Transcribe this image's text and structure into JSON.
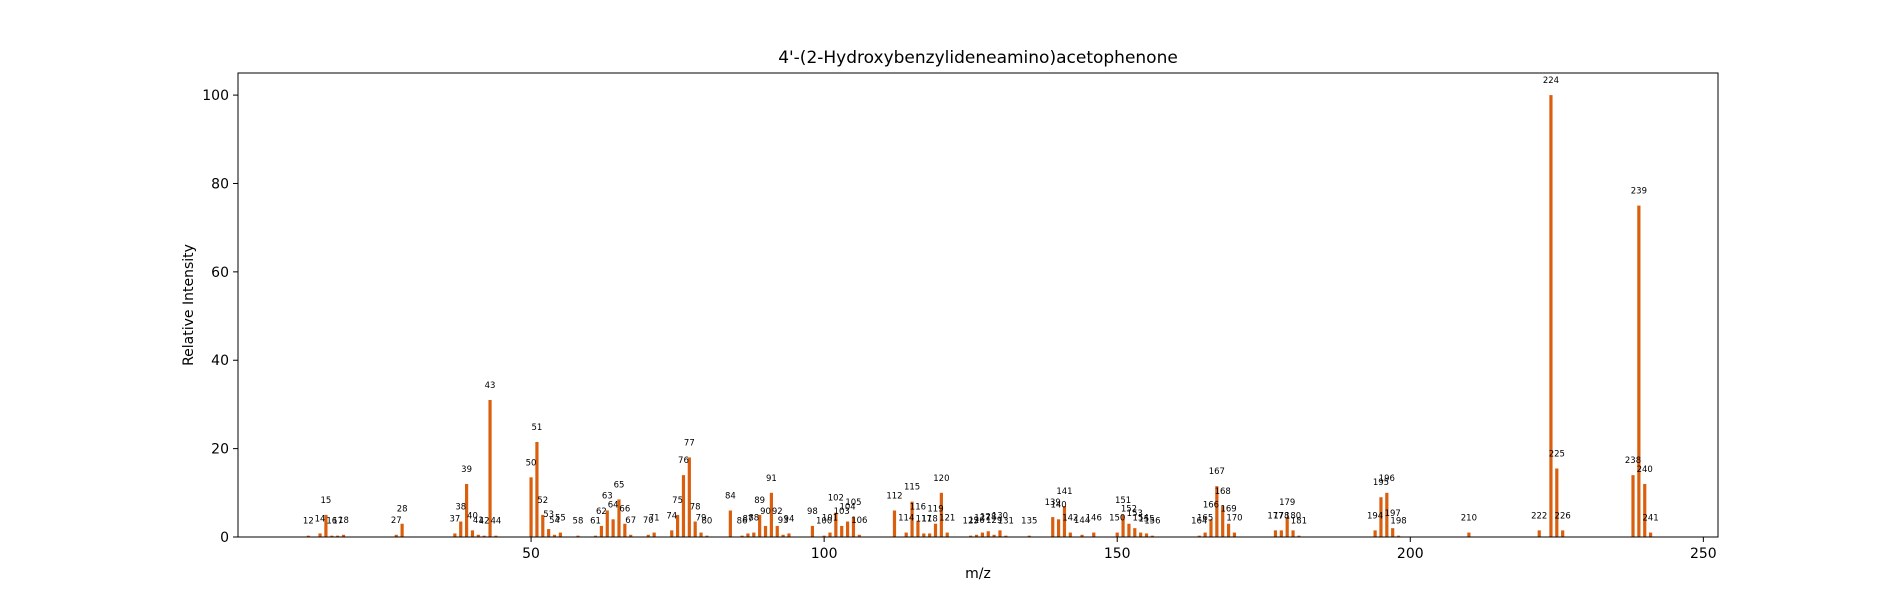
{
  "chart_data": {
    "type": "bar",
    "title": "4'-(2-Hydroxybenzylideneamino)acetophenone",
    "xlabel": "m/z",
    "ylabel": "Relative Intensity",
    "xlim": [
      0,
      252.5
    ],
    "ylim": [
      0,
      105
    ],
    "xticks": [
      50,
      100,
      150,
      200,
      250
    ],
    "yticks": [
      0,
      20,
      40,
      60,
      80,
      100
    ],
    "bar_color": "#d95f0e",
    "grid": false,
    "peaks": [
      {
        "mz": 12,
        "intensity": 0.3,
        "label": "12"
      },
      {
        "mz": 14,
        "intensity": 0.8,
        "label": "14"
      },
      {
        "mz": 15,
        "intensity": 5.0,
        "label": "15"
      },
      {
        "mz": 16,
        "intensity": 0.3,
        "label": "16"
      },
      {
        "mz": 17,
        "intensity": 0.3,
        "label": "17"
      },
      {
        "mz": 18,
        "intensity": 0.5,
        "label": "18"
      },
      {
        "mz": 27,
        "intensity": 0.5,
        "label": "27"
      },
      {
        "mz": 28,
        "intensity": 3.0,
        "label": "28"
      },
      {
        "mz": 37,
        "intensity": 0.8,
        "label": "37"
      },
      {
        "mz": 38,
        "intensity": 3.5,
        "label": "38"
      },
      {
        "mz": 39,
        "intensity": 12.0,
        "label": "39"
      },
      {
        "mz": 40,
        "intensity": 1.5,
        "label": "40"
      },
      {
        "mz": 41,
        "intensity": 0.5,
        "label": "41"
      },
      {
        "mz": 42,
        "intensity": 0.3,
        "label": "42"
      },
      {
        "mz": 43,
        "intensity": 31.0,
        "label": "43"
      },
      {
        "mz": 44,
        "intensity": 0.3,
        "label": "44"
      },
      {
        "mz": 50,
        "intensity": 13.5,
        "label": "50"
      },
      {
        "mz": 51,
        "intensity": 21.5,
        "label": "51"
      },
      {
        "mz": 52,
        "intensity": 5.0,
        "label": "52"
      },
      {
        "mz": 53,
        "intensity": 1.8,
        "label": "53"
      },
      {
        "mz": 54,
        "intensity": 0.5,
        "label": "54"
      },
      {
        "mz": 55,
        "intensity": 1.0,
        "label": "55"
      },
      {
        "mz": 58,
        "intensity": 0.3,
        "label": "58"
      },
      {
        "mz": 61,
        "intensity": 0.3,
        "label": "61"
      },
      {
        "mz": 62,
        "intensity": 2.5,
        "label": "62"
      },
      {
        "mz": 63,
        "intensity": 6.0,
        "label": "63"
      },
      {
        "mz": 64,
        "intensity": 4.0,
        "label": "64"
      },
      {
        "mz": 65,
        "intensity": 8.5,
        "label": "65"
      },
      {
        "mz": 66,
        "intensity": 3.0,
        "label": "66"
      },
      {
        "mz": 67,
        "intensity": 0.5,
        "label": "67"
      },
      {
        "mz": 70,
        "intensity": 0.5,
        "label": "70"
      },
      {
        "mz": 71,
        "intensity": 1.0,
        "label": "71"
      },
      {
        "mz": 74,
        "intensity": 1.5,
        "label": "74"
      },
      {
        "mz": 75,
        "intensity": 5.0,
        "label": "75"
      },
      {
        "mz": 76,
        "intensity": 14.0,
        "label": "76"
      },
      {
        "mz": 77,
        "intensity": 18.0,
        "label": "77"
      },
      {
        "mz": 78,
        "intensity": 3.5,
        "label": "78"
      },
      {
        "mz": 79,
        "intensity": 1.0,
        "label": "79"
      },
      {
        "mz": 80,
        "intensity": 0.3,
        "label": "80"
      },
      {
        "mz": 84,
        "intensity": 6.0,
        "label": "84"
      },
      {
        "mz": 86,
        "intensity": 0.3,
        "label": "86"
      },
      {
        "mz": 87,
        "intensity": 0.8,
        "label": "87"
      },
      {
        "mz": 88,
        "intensity": 1.0,
        "label": "88"
      },
      {
        "mz": 89,
        "intensity": 5.0,
        "label": "89"
      },
      {
        "mz": 90,
        "intensity": 2.5,
        "label": "90"
      },
      {
        "mz": 91,
        "intensity": 10.0,
        "label": "91"
      },
      {
        "mz": 92,
        "intensity": 2.5,
        "label": "92"
      },
      {
        "mz": 93,
        "intensity": 0.5,
        "label": "93"
      },
      {
        "mz": 94,
        "intensity": 0.8,
        "label": "94"
      },
      {
        "mz": 98,
        "intensity": 2.5,
        "label": "98"
      },
      {
        "mz": 100,
        "intensity": 0.3,
        "label": "100"
      },
      {
        "mz": 101,
        "intensity": 1.0,
        "label": "101"
      },
      {
        "mz": 102,
        "intensity": 5.5,
        "label": "102"
      },
      {
        "mz": 103,
        "intensity": 2.5,
        "label": "103"
      },
      {
        "mz": 104,
        "intensity": 3.5,
        "label": "104"
      },
      {
        "mz": 105,
        "intensity": 4.5,
        "label": "105"
      },
      {
        "mz": 106,
        "intensity": 0.5,
        "label": "106"
      },
      {
        "mz": 112,
        "intensity": 6.0,
        "label": "112"
      },
      {
        "mz": 114,
        "intensity": 1.0,
        "label": "114"
      },
      {
        "mz": 115,
        "intensity": 8.0,
        "label": "115"
      },
      {
        "mz": 116,
        "intensity": 3.5,
        "label": "116"
      },
      {
        "mz": 117,
        "intensity": 0.8,
        "label": "117"
      },
      {
        "mz": 118,
        "intensity": 0.8,
        "label": "118"
      },
      {
        "mz": 119,
        "intensity": 3.0,
        "label": "119"
      },
      {
        "mz": 120,
        "intensity": 10.0,
        "label": "120"
      },
      {
        "mz": 121,
        "intensity": 1.0,
        "label": "121"
      },
      {
        "mz": 125,
        "intensity": 0.3,
        "label": "125"
      },
      {
        "mz": 126,
        "intensity": 0.5,
        "label": "126"
      },
      {
        "mz": 127,
        "intensity": 1.0,
        "label": "127"
      },
      {
        "mz": 128,
        "intensity": 1.3,
        "label": "128"
      },
      {
        "mz": 129,
        "intensity": 0.5,
        "label": "129"
      },
      {
        "mz": 130,
        "intensity": 1.5,
        "label": "130"
      },
      {
        "mz": 131,
        "intensity": 0.3,
        "label": "131"
      },
      {
        "mz": 135,
        "intensity": 0.3,
        "label": "135"
      },
      {
        "mz": 139,
        "intensity": 4.5,
        "label": "139"
      },
      {
        "mz": 140,
        "intensity": 4.0,
        "label": "140"
      },
      {
        "mz": 141,
        "intensity": 7.0,
        "label": "141"
      },
      {
        "mz": 142,
        "intensity": 1.0,
        "label": "142"
      },
      {
        "mz": 144,
        "intensity": 0.5,
        "label": "144"
      },
      {
        "mz": 146,
        "intensity": 1.0,
        "label": "146"
      },
      {
        "mz": 150,
        "intensity": 1.0,
        "label": "150"
      },
      {
        "mz": 151,
        "intensity": 5.0,
        "label": "151"
      },
      {
        "mz": 152,
        "intensity": 3.0,
        "label": "152"
      },
      {
        "mz": 153,
        "intensity": 2.0,
        "label": "153"
      },
      {
        "mz": 154,
        "intensity": 1.0,
        "label": "154"
      },
      {
        "mz": 155,
        "intensity": 0.8,
        "label": "155"
      },
      {
        "mz": 156,
        "intensity": 0.3,
        "label": "156"
      },
      {
        "mz": 164,
        "intensity": 0.3,
        "label": "164"
      },
      {
        "mz": 165,
        "intensity": 1.0,
        "label": "165"
      },
      {
        "mz": 166,
        "intensity": 4.0,
        "label": "166"
      },
      {
        "mz": 167,
        "intensity": 11.5,
        "label": "167"
      },
      {
        "mz": 168,
        "intensity": 7.0,
        "label": "168"
      },
      {
        "mz": 169,
        "intensity": 3.0,
        "label": "169"
      },
      {
        "mz": 170,
        "intensity": 1.0,
        "label": "170"
      },
      {
        "mz": 177,
        "intensity": 1.5,
        "label": "177"
      },
      {
        "mz": 178,
        "intensity": 1.5,
        "label": "178"
      },
      {
        "mz": 179,
        "intensity": 4.5,
        "label": "179"
      },
      {
        "mz": 180,
        "intensity": 1.5,
        "label": "180"
      },
      {
        "mz": 181,
        "intensity": 0.3,
        "label": "181"
      },
      {
        "mz": 194,
        "intensity": 1.5,
        "label": "194"
      },
      {
        "mz": 195,
        "intensity": 9.0,
        "label": "195"
      },
      {
        "mz": 196,
        "intensity": 10.0,
        "label": "196"
      },
      {
        "mz": 197,
        "intensity": 2.0,
        "label": "197"
      },
      {
        "mz": 198,
        "intensity": 0.3,
        "label": "198"
      },
      {
        "mz": 210,
        "intensity": 1.0,
        "label": "210"
      },
      {
        "mz": 222,
        "intensity": 1.5,
        "label": "222"
      },
      {
        "mz": 224,
        "intensity": 100.0,
        "label": "224"
      },
      {
        "mz": 225,
        "intensity": 15.5,
        "label": "225"
      },
      {
        "mz": 226,
        "intensity": 1.5,
        "label": "226"
      },
      {
        "mz": 238,
        "intensity": 14.0,
        "label": "238"
      },
      {
        "mz": 239,
        "intensity": 75.0,
        "label": "239"
      },
      {
        "mz": 240,
        "intensity": 12.0,
        "label": "240"
      },
      {
        "mz": 241,
        "intensity": 1.0,
        "label": "241"
      }
    ]
  }
}
